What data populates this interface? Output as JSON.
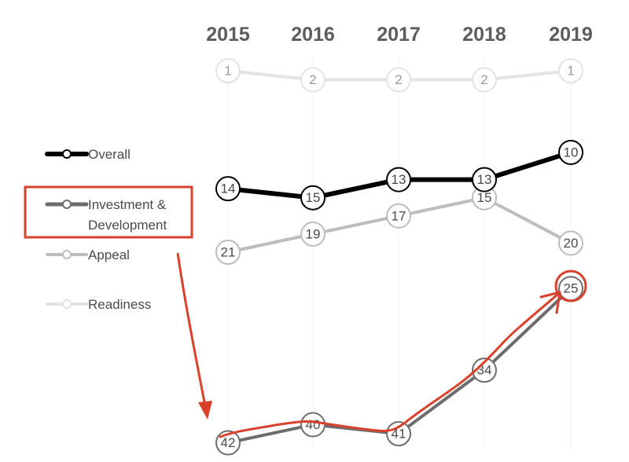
{
  "chart_data": {
    "type": "line",
    "x": [
      "2015",
      "2016",
      "2017",
      "2018",
      "2019"
    ],
    "y_axis": "rank (inverted, 1 at top)",
    "ylim": [
      1,
      42
    ],
    "grid": false,
    "legend_position": "left",
    "series": [
      {
        "name": "Overall",
        "values": [
          14,
          15,
          13,
          13,
          10
        ],
        "color": "#000000"
      },
      {
        "name": "Investment & Development",
        "values": [
          42,
          40,
          41,
          34,
          25
        ],
        "color": "#6d6d6d"
      },
      {
        "name": "Appeal",
        "values": [
          21,
          19,
          17,
          15,
          20
        ],
        "color": "#bdbdbd"
      },
      {
        "name": "Readiness",
        "values": [
          1,
          2,
          2,
          2,
          1
        ],
        "color": "#e3e3e3"
      }
    ],
    "legend_labels": {
      "overall": "Overall",
      "investment_line1": "Investment &",
      "investment_line2": "Development",
      "appeal": "Appeal",
      "readiness": "Readiness"
    },
    "annotation": {
      "highlight_series": "Investment & Development",
      "highlight_color": "#d9412b"
    }
  }
}
